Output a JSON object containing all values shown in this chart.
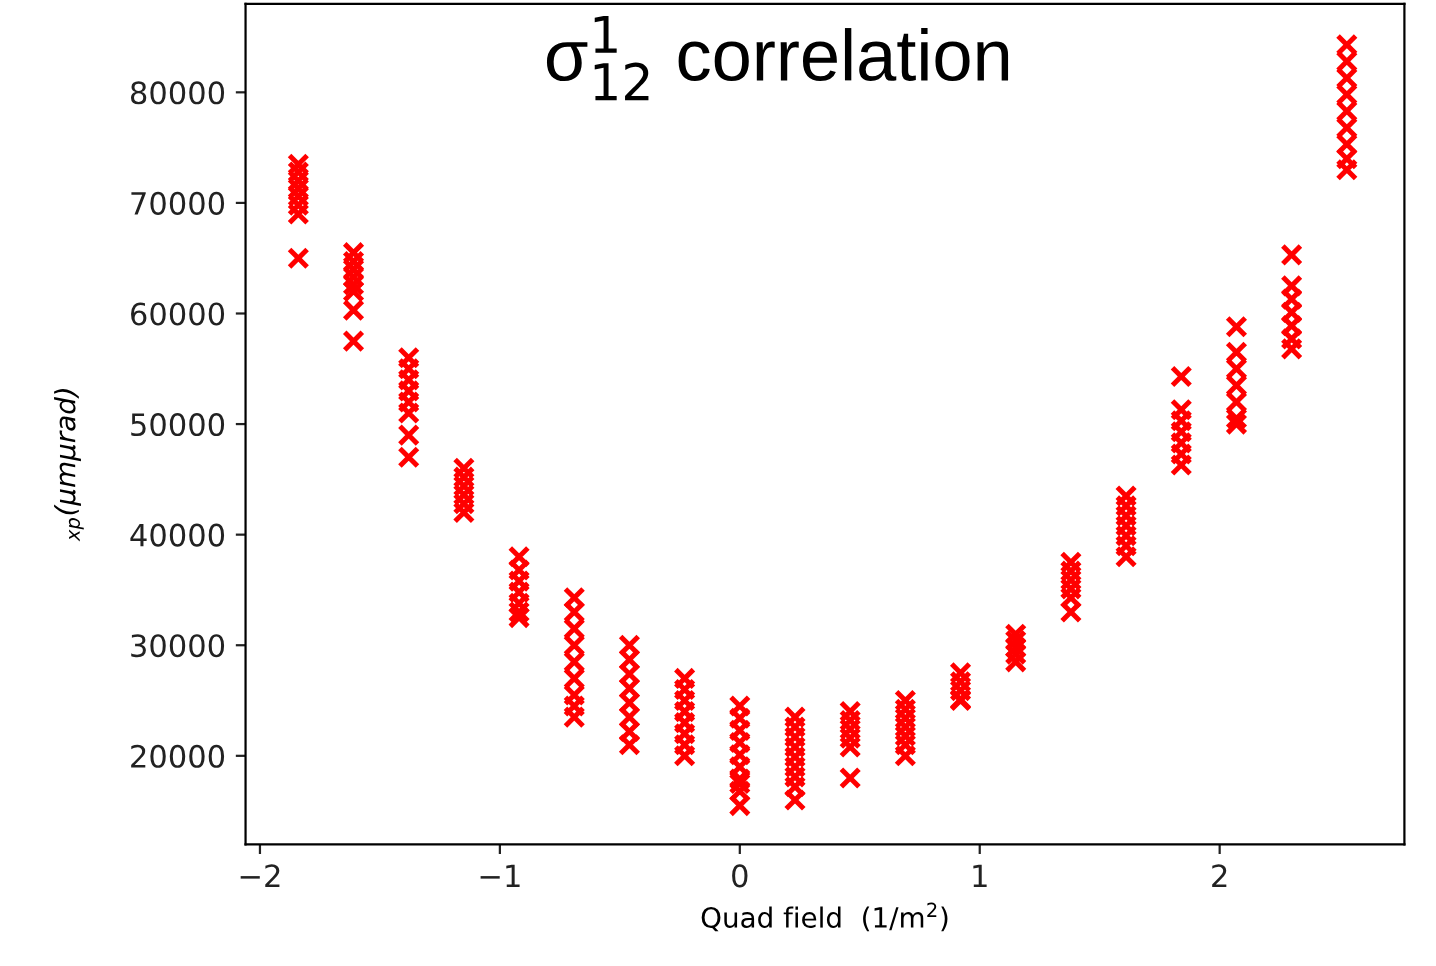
{
  "chart_data": {
    "type": "scatter",
    "title": "σ$^{1}$$_{12}$ correlation",
    "xlabel": "Quad field  (1/m$^{2}$)",
    "ylabel": "$_{xp}$(μmμrad)",
    "xlim": [
      -2.06,
      2.77
    ],
    "xticks": [
      {
        "value": -2,
        "label": "−2"
      },
      {
        "value": -1,
        "label": "−1"
      },
      0,
      1,
      2
    ],
    "ylim": [
      12000,
      88000
    ],
    "yticks": [
      20000,
      30000,
      40000,
      50000,
      60000,
      70000,
      80000
    ],
    "grid": false,
    "marker": "cross",
    "series": [
      {
        "color": "#ff0000",
        "x": [
          -1.84,
          -1.84,
          -1.84,
          -1.84,
          -1.84,
          -1.84,
          -1.84,
          -1.84,
          -1.61,
          -1.61,
          -1.61,
          -1.61,
          -1.61,
          -1.61,
          -1.61,
          -1.61,
          -1.38,
          -1.38,
          -1.38,
          -1.38,
          -1.38,
          -1.38,
          -1.38,
          -1.38,
          -1.15,
          -1.15,
          -1.15,
          -1.15,
          -1.15,
          -1.15,
          -0.92,
          -0.92,
          -0.92,
          -0.92,
          -0.92,
          -0.92,
          -0.92,
          -0.69,
          -0.69,
          -0.69,
          -0.69,
          -0.69,
          -0.69,
          -0.69,
          -0.69,
          -0.69,
          -0.46,
          -0.46,
          -0.46,
          -0.46,
          -0.46,
          -0.46,
          -0.46,
          -0.46,
          -0.23,
          -0.23,
          -0.23,
          -0.23,
          -0.23,
          -0.23,
          -0.23,
          -0.23,
          0,
          0,
          0,
          0,
          0,
          0,
          0,
          0,
          0,
          0,
          0.23,
          0.23,
          0.23,
          0.23,
          0.23,
          0.23,
          0.23,
          0.23,
          0.23,
          0.46,
          0.46,
          0.46,
          0.46,
          0.46,
          0.46,
          0.69,
          0.69,
          0.69,
          0.69,
          0.69,
          0.69,
          0.69,
          0.92,
          0.92,
          0.92,
          0.92,
          0.92,
          1.15,
          1.15,
          1.15,
          1.15,
          1.15,
          1.38,
          1.38,
          1.38,
          1.38,
          1.38,
          1.38,
          1.61,
          1.61,
          1.61,
          1.61,
          1.61,
          1.61,
          1.61,
          1.84,
          1.84,
          1.84,
          1.84,
          1.84,
          1.84,
          1.84,
          2.07,
          2.07,
          2.07,
          2.07,
          2.07,
          2.07,
          2.07,
          2.3,
          2.3,
          2.3,
          2.3,
          2.3,
          2.3,
          2.3,
          2.53,
          2.53,
          2.53,
          2.53,
          2.53,
          2.53,
          2.53,
          2.53,
          2.53
        ],
        "values": [
          73500,
          72800,
          72000,
          71300,
          70600,
          69800,
          69000,
          65000,
          65500,
          64700,
          64000,
          63300,
          62600,
          62000,
          60300,
          57500,
          56000,
          55000,
          54000,
          53000,
          52000,
          51000,
          49000,
          47000,
          46000,
          45200,
          44400,
          43600,
          42800,
          42000,
          38000,
          36800,
          35800,
          34800,
          33800,
          33000,
          32500,
          34300,
          33000,
          31500,
          30000,
          28500,
          27000,
          25500,
          24500,
          23500,
          30000,
          28700,
          27400,
          26100,
          24800,
          23500,
          22200,
          21000,
          27000,
          26000,
          25000,
          24000,
          23000,
          22000,
          21000,
          20000,
          17500,
          24500,
          23400,
          22300,
          21200,
          20100,
          19000,
          17900,
          16800,
          15500,
          23500,
          22600,
          21700,
          20800,
          19900,
          19000,
          18100,
          17200,
          16000,
          24000,
          23200,
          22400,
          21600,
          20800,
          18000,
          25000,
          24200,
          23400,
          22600,
          21800,
          21000,
          20000,
          27500,
          26700,
          25900,
          25100,
          25000,
          31000,
          30400,
          29800,
          29200,
          28500,
          37500,
          36700,
          35900,
          35100,
          34300,
          33000,
          43500,
          42600,
          41700,
          40800,
          39900,
          39000,
          38000,
          54300,
          51300,
          50300,
          49300,
          48300,
          47300,
          46300,
          58800,
          56500,
          55000,
          53500,
          52000,
          50500,
          50000,
          65300,
          62500,
          61300,
          60100,
          58900,
          57700,
          56800,
          84300,
          82800,
          81300,
          79800,
          78300,
          76800,
          75300,
          74000,
          73000
        ]
      }
    ]
  }
}
